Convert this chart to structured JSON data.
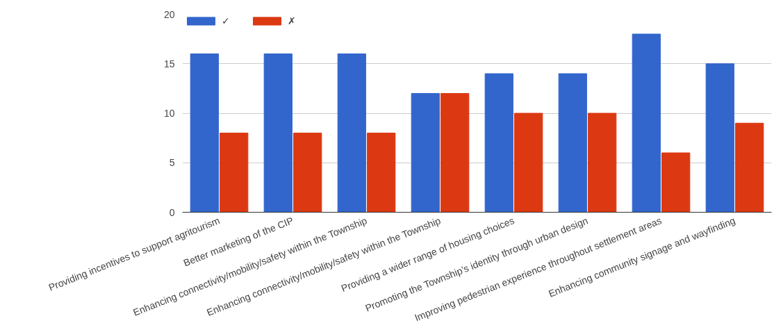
{
  "chart_data": {
    "type": "bar",
    "categories": [
      "Providing incentives to support agritourism",
      "Better marketing of the CIP",
      "Enhancing connectivity/mobility/safety within the Township",
      "Enhancing connectivity/mobility/safety within the Township",
      "Providing a wider range of housing choices",
      "Promoting the Township’s identity through urban design",
      "Improving pedestrian experience throughout settlement areas",
      "Enhancing community signage and wayfinding"
    ],
    "series": [
      {
        "name": "✓",
        "color": "#3366cc",
        "values": [
          16,
          16,
          16,
          12,
          14,
          14,
          18,
          15
        ]
      },
      {
        "name": "✗",
        "color": "#dc3912",
        "values": [
          8,
          8,
          8,
          12,
          10,
          10,
          6,
          9
        ]
      }
    ],
    "ylim": [
      0,
      20
    ],
    "yticks": [
      0,
      5,
      10,
      15,
      20
    ],
    "grid": "y",
    "legend": "top left"
  }
}
